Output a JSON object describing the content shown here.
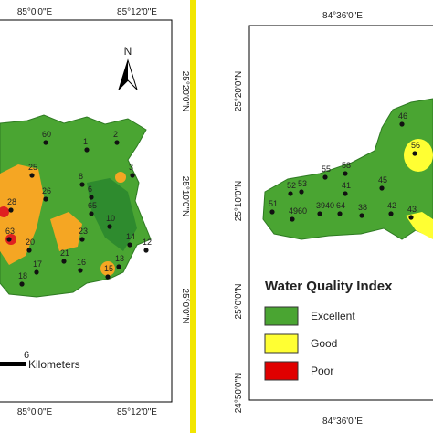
{
  "left_map": {
    "lon_labels": [
      "85°0'0\"E",
      "85°12'0\"E"
    ],
    "lat_labels": [
      "25°20'0\"N",
      "25°10'0\"N",
      "25°0'0\"N"
    ],
    "north": "N",
    "scale_number": "6",
    "scale_unit": "Kilometers",
    "stations": [
      "60",
      "1",
      "2",
      "25",
      "8",
      "3",
      "28",
      "26",
      "6",
      "65",
      "10",
      "14",
      "12",
      "63",
      "20",
      "23",
      "21",
      "16",
      "17",
      "18",
      "15",
      "13"
    ]
  },
  "right_map": {
    "lon_labels": [
      "84°36'0\"E"
    ],
    "lat_labels": [
      "25°20'0\"N",
      "25°10'0\"N",
      "25°0'0\"N",
      "24°50'0\"N"
    ],
    "stations": [
      "46",
      "56",
      "58",
      "55",
      "53",
      "52",
      "41",
      "45",
      "51",
      "4960",
      "3940",
      "64",
      "38",
      "42",
      "43"
    ],
    "legend": {
      "title": "Water Quality Index",
      "items": [
        "Excellent",
        "Good",
        "Poor"
      ]
    }
  }
}
